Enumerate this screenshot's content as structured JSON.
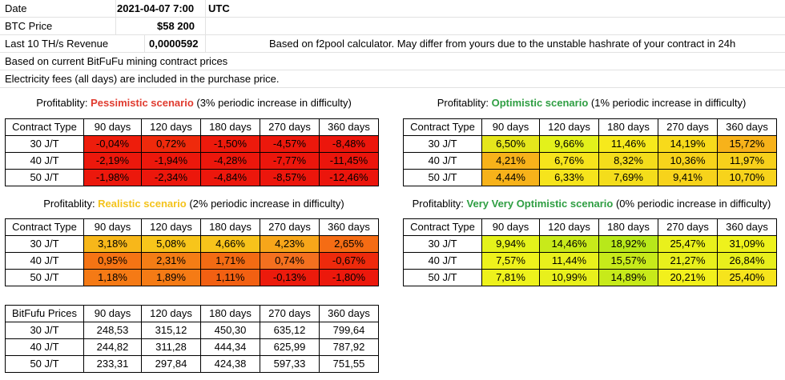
{
  "info": {
    "date_label": "Date",
    "date_value": "2021-04-07 7:00",
    "date_tz": "UTC",
    "btc_label": "BTC Price",
    "btc_value": "$58 200",
    "revenue_label": "Last 10 TH/s Revenue",
    "revenue_value": "0,0000592",
    "revenue_note": "Based on f2pool calculator. May differ from yours due to the unstable hashrate of your contract in 24h",
    "note_prices": "Based on current BitFuFu mining contract prices",
    "note_fees": "Electricity fees (all days) are included in the purchase price."
  },
  "columns": [
    "90 days",
    "120 days",
    "180 days",
    "270 days",
    "360 days"
  ],
  "rows": [
    "30 J/T",
    "40 J/T",
    "50 J/T"
  ],
  "tables": {
    "pessimistic": {
      "prefix": "Profitablity: ",
      "scenario": "Pessimistic scenario",
      "suffix": " (3% periodic increase in difficulty)",
      "corner": "Contract Type",
      "values": [
        [
          "-0,04%",
          "0,72%",
          "-1,50%",
          "-4,57%",
          "-8,48%"
        ],
        [
          "-2,19%",
          "-1,94%",
          "-4,28%",
          "-7,77%",
          "-11,45%"
        ],
        [
          "-1,98%",
          "-2,34%",
          "-4,84%",
          "-8,57%",
          "-12,46%"
        ]
      ],
      "colors": [
        [
          "#ee1d0c",
          "#ef2a0c",
          "#ed1a0c",
          "#ec180c",
          "#ec160c"
        ],
        [
          "#ec180c",
          "#ec180c",
          "#ec170c",
          "#ec160c",
          "#eb150c"
        ],
        [
          "#ec180c",
          "#ec170c",
          "#ec170c",
          "#ec160c",
          "#eb150c"
        ]
      ]
    },
    "optimistic": {
      "prefix": "Profitablity: ",
      "scenario": "Optimistic scenario",
      "suffix": " (1% periodic increase in difficulty)",
      "corner": "Contract Type",
      "values": [
        [
          "6,50%",
          "9,66%",
          "11,46%",
          "14,19%",
          "15,72%"
        ],
        [
          "4,21%",
          "6,76%",
          "8,32%",
          "10,36%",
          "11,97%"
        ],
        [
          "4,44%",
          "6,33%",
          "7,69%",
          "9,41%",
          "10,70%"
        ]
      ],
      "colors": [
        [
          "#e5e61c",
          "#e3f11b",
          "#f6e91c",
          "#f7da1b",
          "#f7b21a"
        ],
        [
          "#f7b21a",
          "#f6e41c",
          "#f4dd1b",
          "#f7d31b",
          "#f7d01b"
        ],
        [
          "#f7b21a",
          "#f6e41c",
          "#f4dd1b",
          "#f7d31b",
          "#f7d31b"
        ]
      ]
    },
    "realistic": {
      "prefix": "Profitablity: ",
      "scenario": "Realistic scenario",
      "suffix": " (2% periodic increase in difficulty)",
      "corner": "Contract Type",
      "values": [
        [
          "3,18%",
          "5,08%",
          "4,66%",
          "4,23%",
          "2,65%"
        ],
        [
          "0,95%",
          "2,31%",
          "1,71%",
          "0,74%",
          "-0,67%"
        ],
        [
          "1,18%",
          "1,89%",
          "1,11%",
          "-0,13%",
          "-1,80%"
        ]
      ],
      "colors": [
        [
          "#f7b71a",
          "#f7c51b",
          "#f7c31b",
          "#f7a61a",
          "#f56c14"
        ],
        [
          "#f57414",
          "#f47d15",
          "#f36b13",
          "#f4701f",
          "#ee2a0c"
        ],
        [
          "#f57a15",
          "#f57b15",
          "#f26012",
          "#ec1b0c",
          "#ec180c"
        ]
      ]
    },
    "very_optimistic": {
      "prefix": "Profitablity: ",
      "scenario": "Very Very Optimistic scenario",
      "suffix": " (0% periodic increase in difficulty)",
      "corner": "Contract Type",
      "values": [
        [
          "9,94%",
          "14,46%",
          "18,92%",
          "25,47%",
          "31,09%"
        ],
        [
          "7,57%",
          "11,44%",
          "15,57%",
          "21,27%",
          "26,84%"
        ],
        [
          "7,81%",
          "10,99%",
          "14,89%",
          "20,21%",
          "25,40%"
        ]
      ],
      "colors": [
        [
          "#e4f21b",
          "#c8ea1a",
          "#b8e81a",
          "#e9f01c",
          "#eef21c"
        ],
        [
          "#eef21c",
          "#e8f01c",
          "#c7ea1a",
          "#e8ef1c",
          "#e8ef1c"
        ],
        [
          "#eef21c",
          "#e8f01c",
          "#c7ea1a",
          "#f2f01c",
          "#f6e41c"
        ]
      ]
    },
    "prices": {
      "corner": "BitFufu Prices",
      "values": [
        [
          "248,53",
          "315,12",
          "450,30",
          "635,12",
          "799,64"
        ],
        [
          "244,82",
          "311,28",
          "444,34",
          "625,99",
          "787,92"
        ],
        [
          "233,31",
          "297,84",
          "424,38",
          "597,33",
          "751,55"
        ]
      ]
    }
  }
}
